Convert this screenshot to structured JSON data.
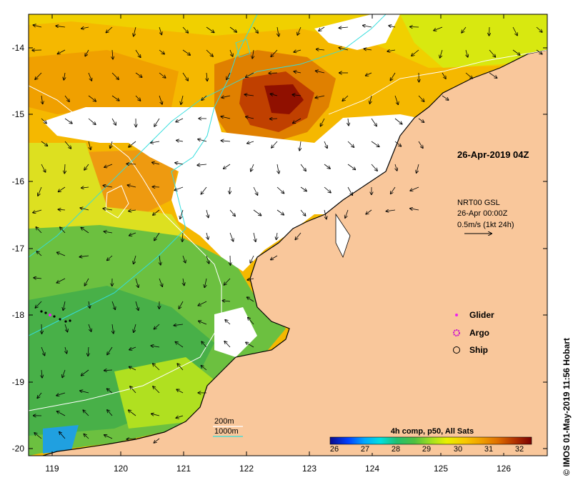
{
  "map": {
    "lat_ticks": [
      "-14",
      "-15",
      "-16",
      "-17",
      "-18",
      "-19",
      "-20"
    ],
    "lon_ticks": [
      "119",
      "120",
      "121",
      "122",
      "123",
      "124",
      "125",
      "126"
    ],
    "date_label": "26-Apr-2019 04Z",
    "current_info": {
      "line1": "NRT00 GSL",
      "line2": "26-Apr 00:00Z",
      "line3": "0.5m/s (1kt 24h)"
    },
    "legend": {
      "glider": "Glider",
      "argo": "Argo",
      "ship": "Ship"
    },
    "depth_legend": {
      "d200": "200m",
      "d1000": "1000m"
    },
    "colorbar": {
      "title": "4h comp, p50, All Sats",
      "ticks": [
        "26",
        "27",
        "28",
        "29",
        "30",
        "31",
        "32"
      ]
    },
    "credit": "© IMOS 01-May-2019 11:56 Hobart",
    "colors": {
      "land": "#f9c79b",
      "nodata": "#ffffff",
      "isobath_200": "#ffffff",
      "isobath_1000": "#33dddd",
      "glider": "#ee22ee",
      "argo": "#cc11cc"
    }
  }
}
